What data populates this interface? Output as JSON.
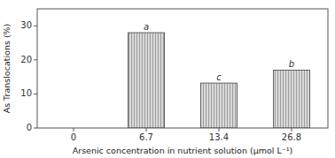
{
  "chart_data": {
    "type": "bar",
    "categories": [
      "0",
      "6.7",
      "13.4",
      "26.8"
    ],
    "values": [
      0,
      28.0,
      13.2,
      17.0
    ],
    "annotations": [
      null,
      "a",
      "c",
      "b"
    ],
    "color": "#d8d8d8",
    "xlabel": "Arsenic concentration in nutrient solution (μmol L⁻¹)",
    "ylabel": "As Translocations (%)",
    "ylim": [
      0,
      35
    ],
    "yticks": [
      0,
      10,
      20,
      30
    ],
    "grid": false
  }
}
